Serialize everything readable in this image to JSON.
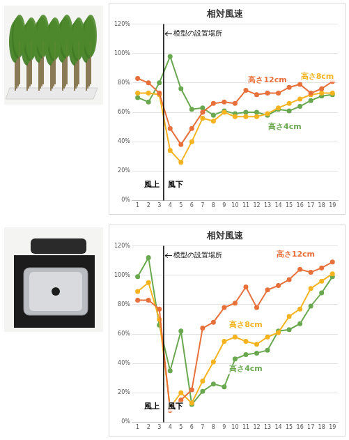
{
  "chart_data": [
    {
      "type": "line",
      "title": "相対風速",
      "x": [
        1,
        2,
        3,
        4,
        5,
        6,
        7,
        8,
        9,
        10,
        11,
        12,
        13,
        14,
        15,
        16,
        17,
        18,
        19
      ],
      "xlim": [
        0.5,
        19.5
      ],
      "xticks": [
        1,
        2,
        3,
        4,
        5,
        6,
        7,
        8,
        9,
        10,
        11,
        12,
        13,
        14,
        15,
        16,
        17,
        18,
        19
      ],
      "ylim": [
        0,
        120
      ],
      "yticks": [
        {
          "value": 0,
          "label": "0%"
        },
        {
          "value": 20,
          "label": "20%"
        },
        {
          "value": 40,
          "label": "40%"
        },
        {
          "value": 60,
          "label": "60%"
        },
        {
          "value": 80,
          "label": "80%"
        },
        {
          "value": 100,
          "label": "100%"
        },
        {
          "value": 120,
          "label": "120%"
        }
      ],
      "grid": "y",
      "marker_line": {
        "x": 3.4,
        "label": "模型の設置場所"
      },
      "region_labels": {
        "left": "風上",
        "right": "風下"
      },
      "series": [
        {
          "name": "高さ12cm",
          "color": "#e8703a",
          "marker": "circle",
          "values": [
            83,
            80,
            73,
            49,
            38,
            49,
            60,
            66,
            67,
            66,
            75,
            72,
            73,
            73,
            77,
            79,
            73,
            76,
            81
          ]
        },
        {
          "name": "高さ8cm",
          "color": "#f5b320",
          "marker": "circle",
          "values": [
            73,
            73,
            72,
            34,
            26,
            40,
            56,
            54,
            60,
            57,
            57,
            57,
            59,
            63,
            66,
            69,
            72,
            73,
            73
          ]
        },
        {
          "name": "高さ4cm",
          "color": "#6aa84f",
          "marker": "circle",
          "values": [
            70,
            67,
            80,
            98,
            76,
            62,
            63,
            58,
            61,
            59,
            60,
            60,
            58,
            62,
            61,
            64,
            68,
            71,
            72
          ]
        }
      ]
    },
    {
      "type": "line",
      "title": "相対風速",
      "x": [
        1,
        2,
        3,
        4,
        5,
        6,
        7,
        8,
        9,
        10,
        11,
        12,
        13,
        14,
        15,
        16,
        17,
        18,
        19
      ],
      "xlim": [
        0.5,
        19.5
      ],
      "xticks": [
        1,
        2,
        3,
        4,
        5,
        6,
        7,
        8,
        9,
        10,
        11,
        12,
        13,
        14,
        15,
        16,
        17,
        18,
        19
      ],
      "ylim": [
        0,
        120
      ],
      "yticks": [
        {
          "value": 0,
          "label": "0%"
        },
        {
          "value": 20,
          "label": "20%"
        },
        {
          "value": 40,
          "label": "40%"
        },
        {
          "value": 60,
          "label": "60%"
        },
        {
          "value": 80,
          "label": "80%"
        },
        {
          "value": 100,
          "label": "100%"
        },
        {
          "value": 120,
          "label": "120%"
        }
      ],
      "grid": "y",
      "marker_line": {
        "x": 3.4,
        "label": "模型の設置場所"
      },
      "region_labels": {
        "left": "風上",
        "right": "風下"
      },
      "series": [
        {
          "name": "高さ12cm",
          "color": "#e8703a",
          "marker": "circle",
          "values": [
            83,
            83,
            77,
            8,
            15,
            22,
            64,
            68,
            78,
            81,
            92,
            78,
            90,
            93,
            97,
            104,
            102,
            105,
            109
          ]
        },
        {
          "name": "高さ8cm",
          "color": "#f5b320",
          "marker": "circle",
          "values": [
            89,
            95,
            70,
            10,
            20,
            13,
            28,
            41,
            55,
            58,
            55,
            53,
            58,
            61,
            72,
            77,
            91,
            96,
            101
          ]
        },
        {
          "name": "高さ4cm",
          "color": "#6aa84f",
          "marker": "circle",
          "values": [
            99,
            112,
            66,
            35,
            62,
            12,
            21,
            26,
            24,
            43,
            46,
            47,
            49,
            62,
            63,
            67,
            79,
            88,
            99
          ]
        }
      ]
    }
  ]
}
